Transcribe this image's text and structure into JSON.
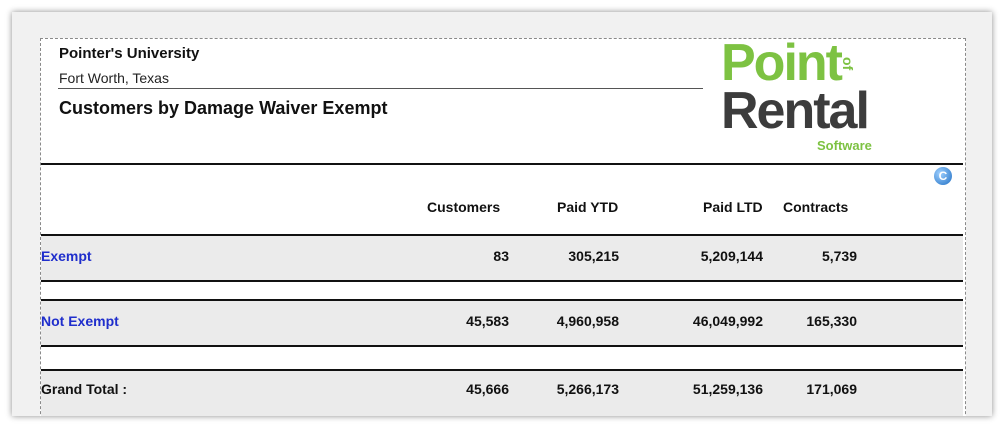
{
  "report": {
    "company": "Pointer's University",
    "city": "Fort Worth, Texas",
    "title": "Customers by Damage Waiver Exempt"
  },
  "logo": {
    "line1": "Point",
    "line1b": "of",
    "line2": "Rental",
    "line3": "Software",
    "color_green": "#7dc242",
    "color_dark": "#3c3c3c"
  },
  "refresh_icon": {
    "glyph": "C",
    "name": "refresh-icon"
  },
  "columns": [
    "Customers",
    "Paid YTD",
    "Paid LTD",
    "Contracts"
  ],
  "rows": [
    {
      "label": "Exempt",
      "customers": "83",
      "paid_ytd": "305,215",
      "paid_ltd": "5,209,144",
      "contracts": "5,739"
    },
    {
      "label": "Not Exempt",
      "customers": "45,583",
      "paid_ytd": "4,960,958",
      "paid_ltd": "46,049,992",
      "contracts": "165,330"
    }
  ],
  "total": {
    "label": "Grand Total :",
    "customers": "45,666",
    "paid_ytd": "5,266,173",
    "paid_ltd": "51,259,136",
    "contracts": "171,069"
  }
}
